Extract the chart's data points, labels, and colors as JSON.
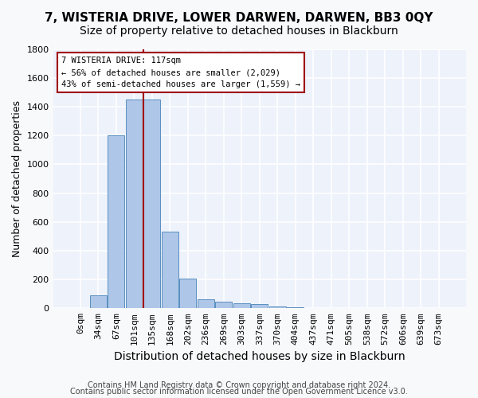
{
  "title": "7, WISTERIA DRIVE, LOWER DARWEN, DARWEN, BB3 0QY",
  "subtitle": "Size of property relative to detached houses in Blackburn",
  "xlabel": "Distribution of detached houses by size in Blackburn",
  "ylabel": "Number of detached properties",
  "bin_labels": [
    "0sqm",
    "34sqm",
    "67sqm",
    "101sqm",
    "135sqm",
    "168sqm",
    "202sqm",
    "236sqm",
    "269sqm",
    "303sqm",
    "337sqm",
    "370sqm",
    "404sqm",
    "437sqm",
    "471sqm",
    "505sqm",
    "538sqm",
    "572sqm",
    "606sqm",
    "639sqm",
    "673sqm"
  ],
  "bar_heights": [
    0,
    90,
    1200,
    1450,
    1450,
    530,
    205,
    65,
    45,
    35,
    28,
    10,
    5,
    2,
    1,
    0,
    0,
    0,
    0,
    0,
    0
  ],
  "bar_color": "#aec6e8",
  "bar_edge_color": "#5a8fc0",
  "vline_x": 3.53,
  "vline_color": "#a00000",
  "ylim": [
    0,
    1800
  ],
  "yticks": [
    0,
    200,
    400,
    600,
    800,
    1000,
    1200,
    1400,
    1600,
    1800
  ],
  "annotation_text": "7 WISTERIA DRIVE: 117sqm\n← 56% of detached houses are smaller (2,029)\n43% of semi-detached houses are larger (1,559) →",
  "annotation_box_color": "#ffffff",
  "annotation_box_edge": "#a00000",
  "footer_line1": "Contains HM Land Registry data © Crown copyright and database right 2024.",
  "footer_line2": "Contains public sector information licensed under the Open Government Licence v3.0.",
  "background_color": "#edf2fb",
  "grid_color": "#ffffff",
  "title_fontsize": 11,
  "subtitle_fontsize": 10,
  "axis_label_fontsize": 9,
  "tick_fontsize": 8,
  "footer_fontsize": 7
}
